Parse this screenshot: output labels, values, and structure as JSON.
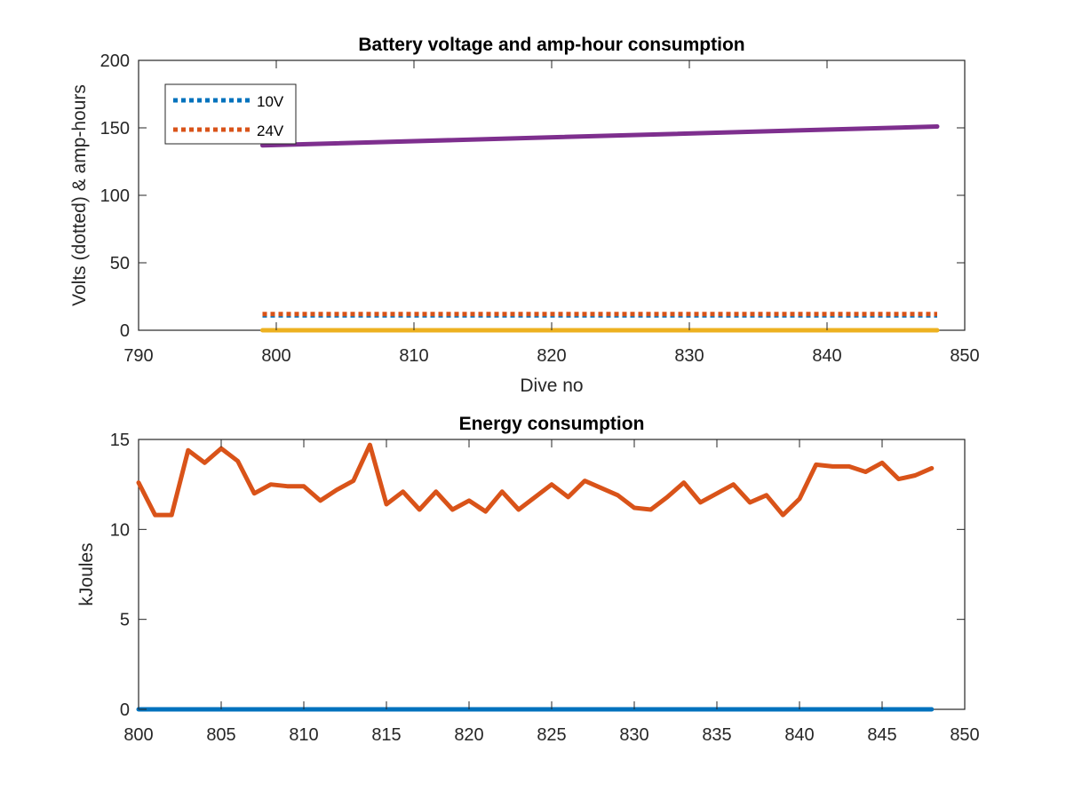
{
  "chart_data": [
    {
      "type": "line",
      "title": "Battery voltage and amp-hour consumption",
      "xlabel": "Dive no",
      "ylabel": "Volts (dotted) & amp-hours",
      "xlim": [
        790,
        850
      ],
      "ylim": [
        0,
        200
      ],
      "xticks": [
        790,
        800,
        810,
        820,
        830,
        840,
        850
      ],
      "yticks": [
        0,
        50,
        100,
        150,
        200
      ],
      "legend_placement": "top-left",
      "grid": false,
      "series": [
        {
          "name": "10V",
          "style": "dotted",
          "color": "#0072BD",
          "x": [
            799,
            848
          ],
          "y": [
            11,
            11
          ]
        },
        {
          "name": "24V",
          "style": "dotted",
          "color": "#D95319",
          "x": [
            799,
            848
          ],
          "y": [
            12,
            12
          ]
        },
        {
          "style": "solid",
          "color": "#EDB120",
          "x": [
            799,
            848
          ],
          "y": [
            0,
            0
          ]
        },
        {
          "style": "solid",
          "color": "#7E2F8E",
          "x": [
            799,
            848
          ],
          "y": [
            137,
            151
          ]
        }
      ]
    },
    {
      "type": "line",
      "title": "Energy consumption",
      "xlabel": "",
      "ylabel": "kJoules",
      "xlim": [
        800,
        850
      ],
      "ylim": [
        0,
        15
      ],
      "xticks": [
        800,
        805,
        810,
        815,
        820,
        825,
        830,
        835,
        840,
        845,
        850
      ],
      "yticks": [
        0,
        5,
        10,
        15
      ],
      "grid": false,
      "series": [
        {
          "style": "solid",
          "color": "#0072BD",
          "x": [
            800,
            848
          ],
          "y": [
            0,
            0
          ]
        },
        {
          "style": "solid",
          "color": "#D95319",
          "x": [
            800,
            801,
            802,
            803,
            804,
            805,
            806,
            807,
            808,
            809,
            810,
            811,
            812,
            813,
            814,
            815,
            816,
            817,
            818,
            819,
            820,
            821,
            822,
            823,
            824,
            825,
            826,
            827,
            828,
            829,
            830,
            831,
            832,
            833,
            834,
            835,
            836,
            837,
            838,
            839,
            840,
            841,
            842,
            843,
            844,
            845,
            846,
            847,
            848
          ],
          "y": [
            12.6,
            10.8,
            10.8,
            14.4,
            13.7,
            14.5,
            13.8,
            12.0,
            12.5,
            12.4,
            12.4,
            11.6,
            12.2,
            12.7,
            14.7,
            11.4,
            12.1,
            11.1,
            12.1,
            11.1,
            11.6,
            11.0,
            12.1,
            11.1,
            11.8,
            12.5,
            11.8,
            12.7,
            12.3,
            11.9,
            11.2,
            11.1,
            11.8,
            12.6,
            11.5,
            12.0,
            12.5,
            11.5,
            11.9,
            10.8,
            11.7,
            13.6,
            13.5,
            13.5,
            13.2,
            13.7,
            12.8,
            13.0,
            13.4
          ]
        }
      ]
    }
  ]
}
